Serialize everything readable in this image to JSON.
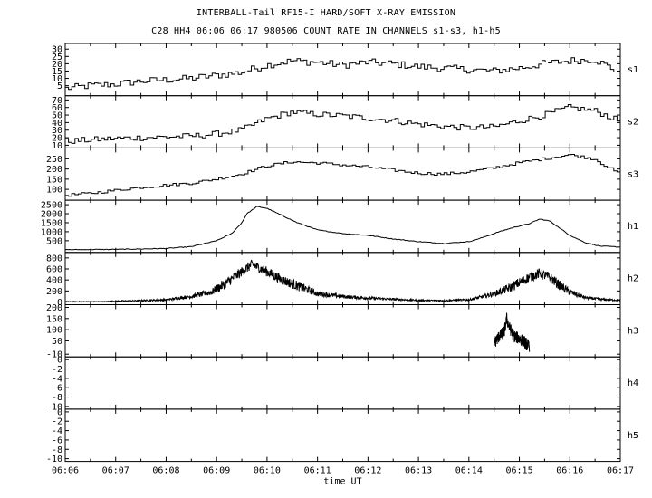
{
  "header": {
    "title": "INTERBALL-Tail RF15-I HARD/SOFT X-RAY EMISSION",
    "subtitle": "C28 HH4 06:06 06:17 980506  COUNT RATE IN CHANNELS s1-s3, h1-h5"
  },
  "chart_data": {
    "type": "line",
    "title": "INTERBALL-Tail RF15-I HARD/SOFT X-RAY EMISSION",
    "subtitle": "C28 HH4 06:06 06:17 980506  COUNT RATE IN CHANNELS s1-s3, h1-h5",
    "xlabel": "time UT",
    "x_ticks": [
      "06:06",
      "06:07",
      "06:08",
      "06:09",
      "06:10",
      "06:11",
      "06:12",
      "06:13",
      "06:14",
      "06:15",
      "06:16",
      "06:17"
    ],
    "xlim_minutes": [
      0,
      11
    ],
    "grid": false,
    "panels": [
      {
        "name": "s1",
        "style": "step",
        "ylim": [
          0,
          32
        ],
        "y_ticks": [
          5,
          10,
          15,
          20,
          25,
          30
        ],
        "x": [
          0,
          0.5,
          1,
          1.5,
          2,
          2.5,
          3,
          3.5,
          4,
          4.5,
          5,
          5.5,
          6,
          6.5,
          7,
          7.5,
          8,
          8.5,
          9,
          9.5,
          10,
          10.5,
          11
        ],
        "values": [
          3,
          5,
          6,
          8,
          9,
          10,
          12,
          14,
          19,
          22,
          21,
          19,
          21,
          20,
          18,
          17,
          16,
          15,
          17,
          20,
          22,
          23,
          14
        ],
        "noise": 5
      },
      {
        "name": "s2",
        "style": "step",
        "ylim": [
          10,
          72
        ],
        "y_ticks": [
          10,
          20,
          30,
          40,
          50,
          60,
          70
        ],
        "x": [
          0,
          0.5,
          1,
          1.5,
          2,
          2.5,
          3,
          3.5,
          4,
          4.5,
          5,
          5.5,
          6,
          6.5,
          7,
          7.5,
          8,
          8.5,
          9,
          9.5,
          10,
          10.5,
          11
        ],
        "values": [
          15,
          17,
          19,
          20,
          21,
          22,
          25,
          30,
          45,
          54,
          51,
          49,
          46,
          43,
          38,
          35,
          33,
          34,
          42,
          50,
          60,
          56,
          42
        ],
        "noise": 8
      },
      {
        "name": "s3",
        "style": "step",
        "ylim": [
          60,
          290
        ],
        "y_ticks": [
          100,
          150,
          200,
          250
        ],
        "x": [
          0,
          0.5,
          1,
          1.5,
          2,
          2.5,
          3,
          3.5,
          4,
          4.5,
          5,
          5.5,
          6,
          6.5,
          7,
          7.5,
          8,
          8.5,
          9,
          9.5,
          10,
          10.5,
          11
        ],
        "values": [
          70,
          80,
          95,
          110,
          120,
          130,
          150,
          175,
          215,
          235,
          230,
          220,
          210,
          195,
          180,
          175,
          185,
          205,
          230,
          250,
          270,
          250,
          175
        ],
        "noise": 14
      },
      {
        "name": "h1",
        "style": "line",
        "ylim": [
          0,
          2600
        ],
        "y_ticks": [
          500,
          1000,
          1500,
          2000,
          2500
        ],
        "x": [
          0,
          1,
          1.5,
          2,
          2.5,
          3,
          3.3,
          3.5,
          3.6,
          3.8,
          4,
          4.3,
          4.6,
          5,
          5.5,
          6,
          6.5,
          7,
          7.5,
          8,
          8.3,
          8.6,
          8.9,
          9.2,
          9.4,
          9.6,
          9.8,
          10,
          10.3,
          10.6,
          11
        ],
        "values": [
          0,
          20,
          40,
          70,
          170,
          500,
          900,
          1500,
          2000,
          2400,
          2300,
          1900,
          1500,
          1100,
          900,
          800,
          600,
          450,
          350,
          450,
          700,
          1000,
          1250,
          1450,
          1700,
          1600,
          1200,
          800,
          400,
          200,
          150
        ],
        "noise": 0
      },
      {
        "name": "h2",
        "style": "noisy",
        "ylim": [
          0,
          850
        ],
        "y_ticks": [
          0,
          200,
          400,
          600,
          800
        ],
        "x": [
          0,
          0.8,
          1,
          1.5,
          2,
          2.5,
          2.9,
          3.2,
          3.5,
          3.7,
          4,
          4.3,
          4.7,
          5,
          5.5,
          6,
          6.5,
          7,
          7.5,
          8,
          8.2,
          8.5,
          8.8,
          9,
          9.2,
          9.4,
          9.6,
          9.8,
          10,
          10.3,
          10.6,
          11
        ],
        "values": [
          5,
          5,
          15,
          25,
          40,
          100,
          180,
          350,
          550,
          680,
          550,
          400,
          260,
          150,
          100,
          70,
          50,
          30,
          25,
          40,
          80,
          150,
          250,
          350,
          450,
          520,
          450,
          300,
          180,
          80,
          50,
          30
        ],
        "noise": 90
      },
      {
        "name": "h3",
        "style": "burst",
        "ylim": [
          -10,
          200
        ],
        "y_ticks": [
          -10,
          50,
          100,
          150,
          200
        ],
        "x": [
          8.5,
          8.6,
          8.7,
          8.75,
          8.8,
          8.9,
          9.0,
          9.1,
          9.2
        ],
        "values": [
          40,
          70,
          90,
          150,
          110,
          70,
          60,
          45,
          25
        ],
        "noise": 25
      },
      {
        "name": "h4",
        "style": "none",
        "ylim": [
          -10,
          0
        ],
        "y_ticks": [
          0,
          -2,
          -4,
          -6,
          -8,
          -10
        ],
        "x": [],
        "values": [],
        "noise": 0
      },
      {
        "name": "h5",
        "style": "none",
        "ylim": [
          -10,
          0
        ],
        "y_ticks": [
          0,
          -2,
          -4,
          -6,
          -8,
          -10
        ],
        "x": [],
        "values": [],
        "noise": 0
      }
    ]
  }
}
